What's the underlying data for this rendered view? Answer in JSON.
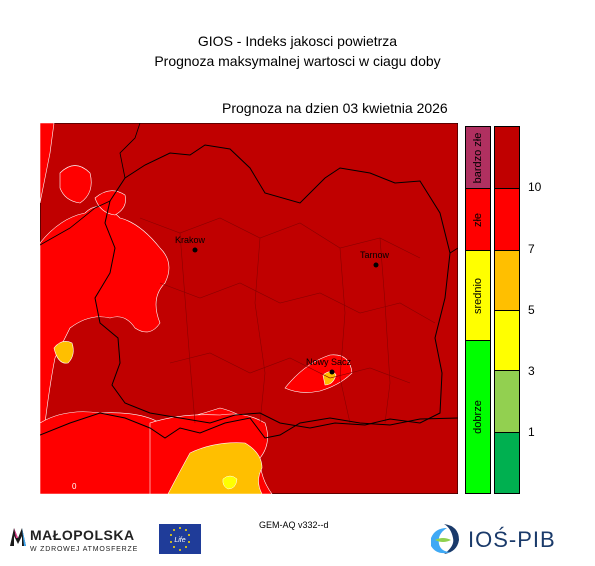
{
  "header": {
    "title": "GIOS - Indeks jakosci powietrza",
    "subtitle": "Prognoza maksymalnej wartosci w ciagu doby",
    "date_line": "Prognoza na dzien  03 kwietnia 2026"
  },
  "map": {
    "cities": [
      {
        "name": "Krakow"
      },
      {
        "name": "Tarnow"
      },
      {
        "name": "Nowy Sacz"
      }
    ],
    "corner_label": "0",
    "colors": {
      "background": "#c00000",
      "red": "#ff0000",
      "orange": "#ffbf00",
      "yellow": "#ffff00",
      "boundary": "#000000",
      "contour": "#ffffff"
    }
  },
  "legend": {
    "categories": [
      {
        "label": "bardzo złe",
        "color": "#b03060"
      },
      {
        "label": "złe",
        "color": "#ff0000"
      },
      {
        "label": "srednio",
        "color": "#ffff00"
      },
      {
        "label": "dobrze",
        "color": "#00ff00"
      }
    ],
    "scale": [
      {
        "color": "#c00000"
      },
      {
        "color": "#ff0000"
      },
      {
        "color": "#ffbf00"
      },
      {
        "color": "#ffff00"
      },
      {
        "color": "#92d050"
      },
      {
        "color": "#00b050"
      }
    ],
    "ticks": [
      "10",
      "7",
      "5",
      "3",
      "1"
    ]
  },
  "footer": {
    "model": "GEM-AQ v332--d",
    "malopolska_name": "MAŁOPOLSKA",
    "malopolska_sub": "W ZDROWEJ ATMOSFERZE",
    "life_label": "Life",
    "ios_name": "IOŚ-PIB"
  }
}
